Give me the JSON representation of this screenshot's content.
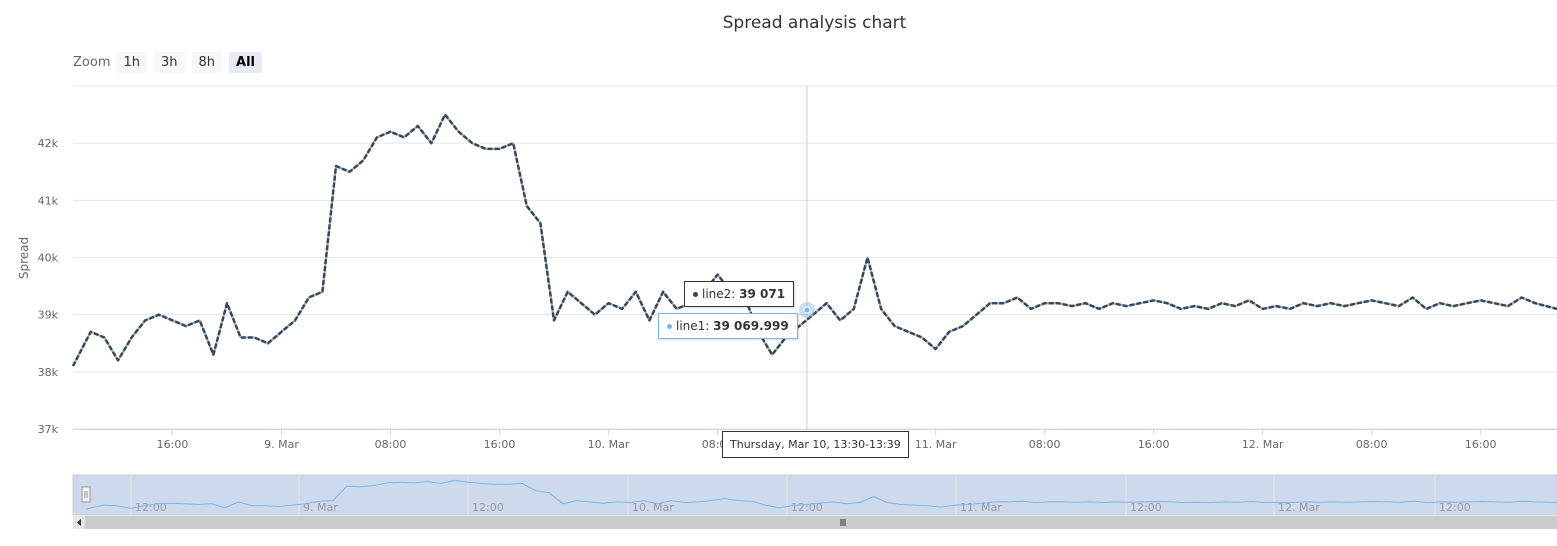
{
  "title": "Spread analysis chart",
  "zoom": {
    "label": "Zoom",
    "buttons": [
      "1h",
      "3h",
      "8h",
      "All"
    ],
    "active": "All"
  },
  "colors": {
    "line1": "#7cb5ec",
    "line2": "#434348",
    "navigator_fill": "#cfd9ee",
    "grid": "#e6e6e6"
  },
  "tooltip": {
    "line2": {
      "name": "line2",
      "value": "39 071"
    },
    "line1": {
      "name": "line1",
      "value": "39 069.999"
    },
    "x_label": "Thursday, Mar 10, 13:30-13:39"
  },
  "navigator": {
    "tick_labels": [
      "12:00",
      "9. Mar",
      "12:00",
      "10. Mar",
      "12:00",
      "11. Mar",
      "12:00",
      "12. Mar",
      "12:00"
    ]
  },
  "chart_data": {
    "type": "line",
    "ylabel": "Spread",
    "ylim": [
      37000,
      43000
    ],
    "y_ticks": [
      "37k",
      "38k",
      "39k",
      "40k",
      "41k",
      "42k"
    ],
    "x_tick_labels": [
      "16:00",
      "9. Mar",
      "08:00",
      "16:00",
      "10. Mar",
      "08:00",
      "11. Mar",
      "08:00",
      "16:00",
      "12. Mar",
      "08:00",
      "16:00"
    ],
    "x_hours": [
      16,
      24,
      32,
      40,
      48,
      56,
      72,
      80,
      88,
      96,
      104,
      112
    ],
    "xlim": [
      8.7,
      117.6
    ],
    "series": [
      {
        "name": "line1",
        "x": [
          8.7,
          10,
          11,
          12,
          13,
          14,
          15,
          16,
          17,
          18,
          19,
          20,
          21,
          22,
          23,
          24,
          25,
          26,
          27,
          28,
          29,
          30,
          31,
          32,
          33,
          34,
          35,
          36,
          37,
          38,
          39,
          40,
          41,
          42,
          43,
          44,
          45,
          46,
          47,
          48,
          49,
          50,
          51,
          52,
          53,
          54,
          55,
          56,
          57,
          58,
          59,
          60,
          61,
          62,
          63,
          64,
          65,
          66,
          67,
          68,
          69,
          70,
          71,
          72,
          73,
          74,
          75,
          76,
          77,
          78,
          79,
          80,
          81,
          82,
          83,
          84,
          85,
          86,
          87,
          88,
          89,
          90,
          91,
          92,
          93,
          94,
          95,
          96,
          97,
          98,
          99,
          100,
          101,
          102,
          103,
          104,
          105,
          106,
          107,
          108,
          109,
          110,
          111,
          112,
          113,
          114,
          115,
          116,
          117.6
        ],
        "y": [
          38100,
          38700,
          38600,
          38200,
          38600,
          38900,
          39000,
          38900,
          38800,
          38900,
          38300,
          39200,
          38600,
          38600,
          38500,
          38700,
          38900,
          39300,
          39400,
          41600,
          41500,
          41700,
          42100,
          42200,
          42100,
          42300,
          42000,
          42500,
          42200,
          42000,
          41900,
          41900,
          42000,
          40900,
          40600,
          38900,
          39400,
          39200,
          39000,
          39200,
          39100,
          39400,
          38900,
          39400,
          39100,
          39200,
          39400,
          39700,
          39400,
          39300,
          38700,
          38300,
          38600,
          38800,
          39000,
          39200,
          38900,
          39100,
          40000,
          39100,
          38800,
          38700,
          38600,
          38400,
          38700,
          38800,
          39000,
          39200,
          39200,
          39300,
          39100,
          39200,
          39200,
          39150,
          39200,
          39100,
          39200,
          39150,
          39200,
          39250,
          39200,
          39100,
          39150,
          39100,
          39200,
          39150,
          39250,
          39100,
          39150,
          39100,
          39200,
          39150,
          39200,
          39150,
          39200,
          39250,
          39200,
          39150,
          39300,
          39100,
          39200,
          39150,
          39200,
          39250,
          39200,
          39150,
          39300,
          39200,
          39100
        ]
      },
      {
        "name": "line2",
        "x": [
          8.7,
          10,
          11,
          12,
          13,
          14,
          15,
          16,
          17,
          18,
          19,
          20,
          21,
          22,
          23,
          24,
          25,
          26,
          27,
          28,
          29,
          30,
          31,
          32,
          33,
          34,
          35,
          36,
          37,
          38,
          39,
          40,
          41,
          42,
          43,
          44,
          45,
          46,
          47,
          48,
          49,
          50,
          51,
          52,
          53,
          54,
          55,
          56,
          57,
          58,
          59,
          60,
          61,
          62,
          63,
          64,
          65,
          66,
          67,
          68,
          69,
          70,
          71,
          72,
          73,
          74,
          75,
          76,
          77,
          78,
          79,
          80,
          81,
          82,
          83,
          84,
          85,
          86,
          87,
          88,
          89,
          90,
          91,
          92,
          93,
          94,
          95,
          96,
          97,
          98,
          99,
          100,
          101,
          102,
          103,
          104,
          105,
          106,
          107,
          108,
          109,
          110,
          111,
          112,
          113,
          114,
          115,
          116,
          117.6
        ],
        "y": [
          38100,
          38700,
          38600,
          38200,
          38600,
          38900,
          39000,
          38900,
          38800,
          38900,
          38300,
          39200,
          38600,
          38600,
          38500,
          38700,
          38900,
          39300,
          39400,
          41600,
          41500,
          41700,
          42100,
          42200,
          42100,
          42300,
          42000,
          42500,
          42200,
          42000,
          41900,
          41900,
          42000,
          40900,
          40600,
          38900,
          39400,
          39200,
          39000,
          39200,
          39100,
          39400,
          38900,
          39400,
          39100,
          39200,
          39400,
          39700,
          39400,
          39300,
          38700,
          38300,
          38600,
          38800,
          39000,
          39200,
          38900,
          39100,
          40000,
          39100,
          38800,
          38700,
          38600,
          38400,
          38700,
          38800,
          39000,
          39200,
          39200,
          39300,
          39100,
          39200,
          39200,
          39150,
          39200,
          39100,
          39200,
          39150,
          39200,
          39250,
          39200,
          39100,
          39150,
          39100,
          39200,
          39150,
          39250,
          39100,
          39150,
          39100,
          39200,
          39150,
          39200,
          39150,
          39200,
          39250,
          39200,
          39150,
          39300,
          39100,
          39200,
          39150,
          39200,
          39250,
          39200,
          39150,
          39300,
          39200,
          39100
        ]
      }
    ]
  }
}
